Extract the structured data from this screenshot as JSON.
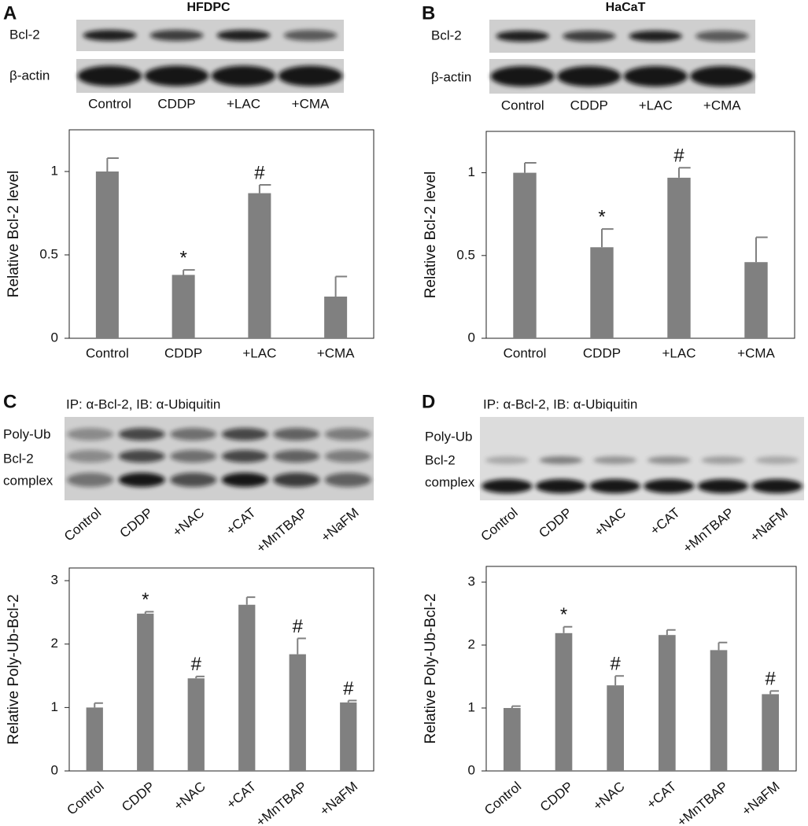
{
  "chart_data": [
    {
      "type": "bar",
      "panel": "A",
      "blot": {
        "title": "HFDPC",
        "rows": [
          "Bcl-2",
          "β-actin"
        ],
        "lanes": [
          "Control",
          "CDDP",
          "+LAC",
          "+CMA"
        ]
      },
      "y_label": "Relative Bcl-2 level",
      "categories": [
        "Control",
        "CDDP",
        "+LAC",
        "+CMA"
      ],
      "values": [
        1.0,
        0.38,
        0.87,
        0.25
      ],
      "errors": [
        0.08,
        0.03,
        0.05,
        0.12
      ],
      "markers": [
        null,
        "*",
        "#",
        null
      ],
      "color": "#808080",
      "ylim": [
        0,
        1.25
      ],
      "yticks": [
        0,
        0.5,
        1
      ]
    },
    {
      "type": "bar",
      "panel": "B",
      "blot": {
        "title": "HaCaT",
        "rows": [
          "Bcl-2",
          "β-actin"
        ],
        "lanes": [
          "Control",
          "CDDP",
          "+LAC",
          "+CMA"
        ]
      },
      "y_label": "Relative Bcl-2 level",
      "categories": [
        "Control",
        "CDDP",
        "+LAC",
        "+CMA"
      ],
      "values": [
        1.0,
        0.55,
        0.97,
        0.46
      ],
      "errors": [
        0.06,
        0.11,
        0.06,
        0.15
      ],
      "markers": [
        null,
        "*",
        "#",
        null
      ],
      "color": "#808080",
      "ylim": [
        0,
        1.25
      ],
      "yticks": [
        0,
        0.5,
        1
      ]
    },
    {
      "type": "bar",
      "panel": "C",
      "blot": {
        "title": "IP: α-Bcl-2, IB: α-Ubiquitin",
        "rows": [
          "Poly-Ub",
          "Bcl-2",
          "complex"
        ],
        "lanes": [
          "Control",
          "CDDP",
          "+NAC",
          "+CAT",
          "+MnTBAP",
          "+NaFM"
        ]
      },
      "y_label": "Relative Poly-Ub-Bcl-2",
      "categories": [
        "Control",
        "CDDP",
        "+NAC",
        "+CAT",
        "+MnTBAP",
        "+NaFM"
      ],
      "values": [
        1.0,
        2.48,
        1.46,
        2.62,
        1.84,
        1.08
      ],
      "errors": [
        0.07,
        0.03,
        0.03,
        0.12,
        0.25,
        0.03
      ],
      "markers": [
        null,
        "*",
        "#",
        null,
        "#",
        "#"
      ],
      "color": "#808080",
      "ylim": [
        0,
        3.2
      ],
      "yticks": [
        0,
        1,
        2,
        3
      ]
    },
    {
      "type": "bar",
      "panel": "D",
      "blot": {
        "title": "IP: α-Bcl-2, IB: α-Ubiquitin",
        "rows": [
          "Poly-Ub",
          "Bcl-2",
          "complex"
        ],
        "lanes": [
          "Control",
          "CDDP",
          "+NAC",
          "+CAT",
          "+MnTBAP",
          "+NaFM"
        ]
      },
      "y_label": "Relative Poly-Ub-Bcl-2",
      "categories": [
        "Control",
        "CDDP",
        "+NAC",
        "+CAT",
        "+MnTBAP",
        "+NaFM"
      ],
      "values": [
        1.0,
        2.19,
        1.36,
        2.16,
        1.92,
        1.22
      ],
      "errors": [
        0.03,
        0.1,
        0.15,
        0.08,
        0.12,
        0.05
      ],
      "markers": [
        null,
        "*",
        "#",
        null,
        null,
        "#"
      ],
      "color": "#808080",
      "ylim": [
        0,
        3.25
      ],
      "yticks": [
        0,
        1,
        2,
        3
      ]
    }
  ]
}
